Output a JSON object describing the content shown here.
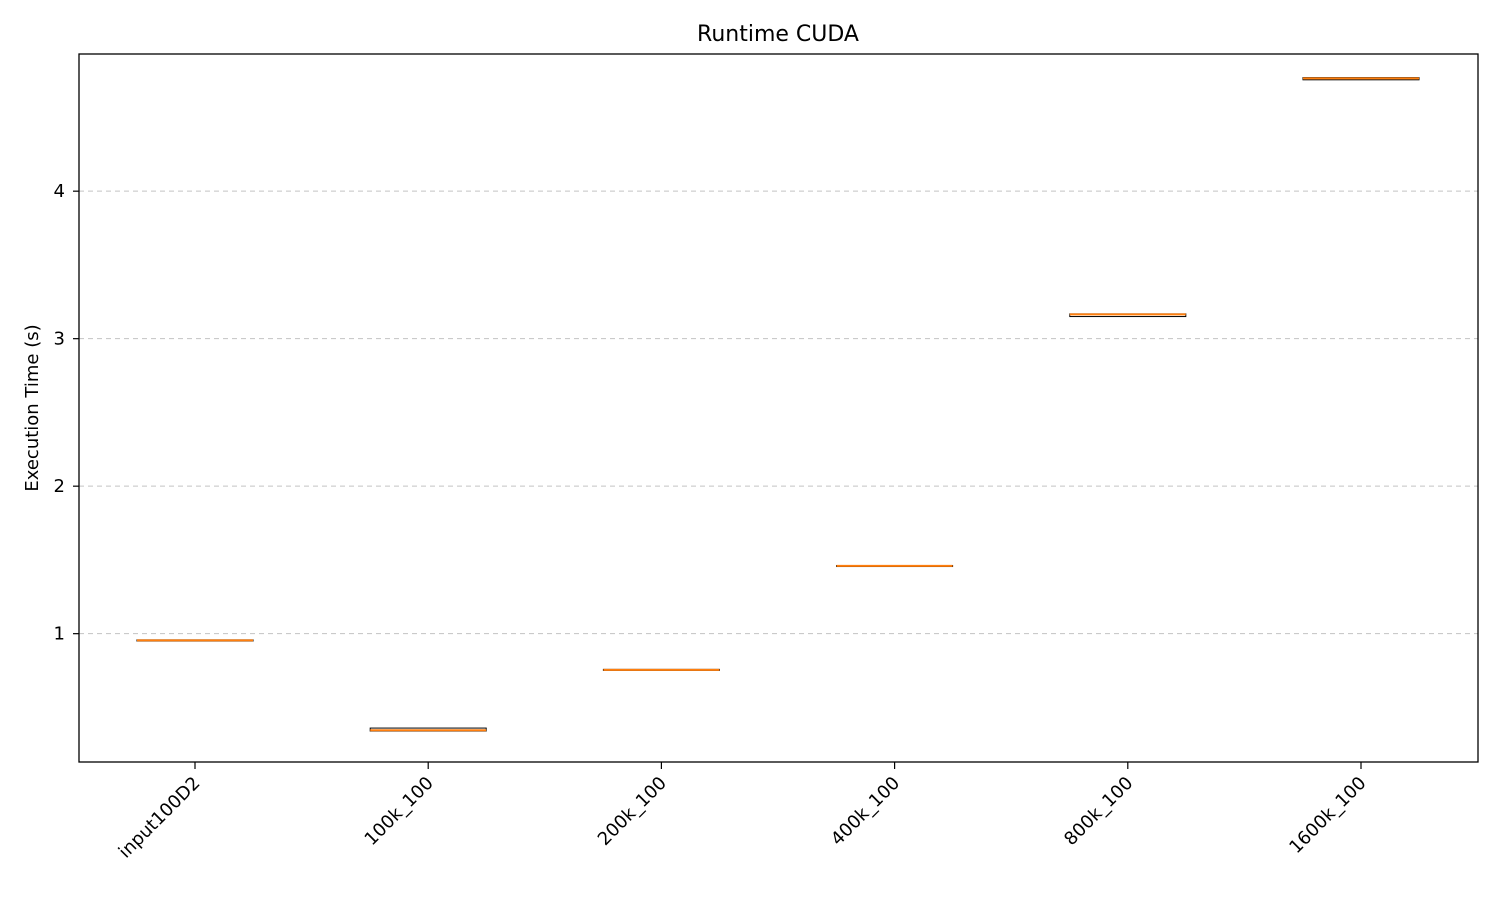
{
  "chart_data": {
    "type": "box",
    "title": "Runtime CUDA",
    "xlabel": "",
    "ylabel": "Execution Time (s)",
    "categories": [
      "input100D2",
      "100k_100",
      "200k_100",
      "400k_100",
      "800k_100",
      "1600k_100"
    ],
    "medians": [
      0.955,
      0.345,
      0.755,
      1.46,
      3.165,
      4.765
    ],
    "box_low": [
      0.95,
      0.34,
      0.752,
      1.458,
      3.15,
      4.755
    ],
    "box_high": [
      0.958,
      0.36,
      0.758,
      1.462,
      3.168,
      4.77
    ],
    "yticks": [
      1,
      2,
      3,
      4
    ],
    "ylim": [
      0.13,
      4.93
    ],
    "grid": "y-dashed",
    "colors": {
      "median": "#ff7f0e",
      "box": "#000000",
      "grid": "#b0b0b0",
      "axis": "#000000"
    }
  }
}
